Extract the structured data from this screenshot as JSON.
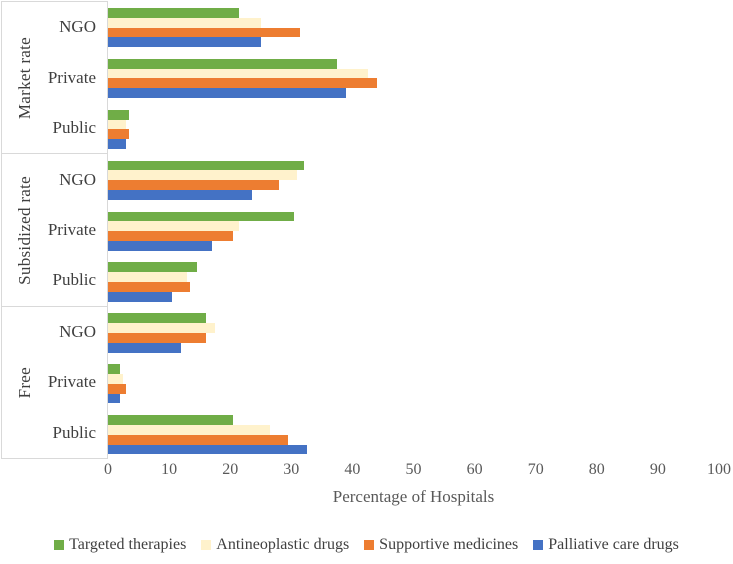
{
  "chart_data": {
    "type": "bar",
    "orientation": "horizontal",
    "title": "",
    "xlabel": "Percentage of Hospitals",
    "ylabel": "",
    "xlim": [
      0,
      100
    ],
    "xticks": [
      0,
      10,
      20,
      30,
      40,
      50,
      60,
      70,
      80,
      90,
      100
    ],
    "gridlines": false,
    "legend_position": "bottom",
    "series": [
      {
        "name": "Targeted therapies",
        "color": "#70AD47"
      },
      {
        "name": "Antineoplastic drugs",
        "color": "#FFF2CC"
      },
      {
        "name": "Supportive medicines",
        "color": "#ED7D31"
      },
      {
        "name": "Palliative care drugs",
        "color": "#4472C4"
      }
    ],
    "groups": [
      {
        "label": "Market rate",
        "rows": [
          {
            "category": "NGO",
            "values": [
              21.5,
              25,
              31.5,
              25
            ]
          },
          {
            "category": "Private",
            "values": [
              37.5,
              42.5,
              44,
              39
            ]
          },
          {
            "category": "Public",
            "values": [
              3.5,
              3,
              3.5,
              3
            ]
          }
        ]
      },
      {
        "label": "Subsidized rate",
        "rows": [
          {
            "category": "NGO",
            "values": [
              32,
              31,
              28,
              23.5
            ]
          },
          {
            "category": "Private",
            "values": [
              30.5,
              21.5,
              20.5,
              17
            ]
          },
          {
            "category": "Public",
            "values": [
              14.5,
              13,
              13.5,
              10.5
            ]
          }
        ]
      },
      {
        "label": "Free",
        "rows": [
          {
            "category": "NGO",
            "values": [
              16,
              17.5,
              16,
              12
            ]
          },
          {
            "category": "Private",
            "values": [
              2,
              2.5,
              3,
              2
            ]
          },
          {
            "category": "Public",
            "values": [
              20.5,
              26.5,
              29.5,
              32.5
            ]
          }
        ]
      }
    ],
    "colors": {
      "axis_line": "#D9D9D9",
      "tick_label": "#595959",
      "category_label": "#3F3F3F",
      "axis_title": "#595959",
      "legend_text": "#404040"
    }
  }
}
